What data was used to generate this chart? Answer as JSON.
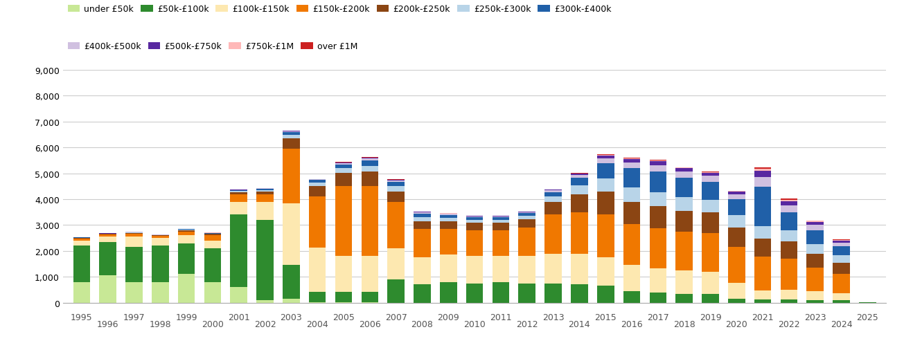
{
  "years": [
    1995,
    1996,
    1997,
    1998,
    1999,
    2000,
    2001,
    2002,
    2003,
    2004,
    2005,
    2006,
    2007,
    2008,
    2009,
    2010,
    2011,
    2012,
    2013,
    2014,
    2015,
    2016,
    2017,
    2018,
    2019,
    2020,
    2021,
    2022,
    2023,
    2024,
    2025
  ],
  "series": {
    "under_50k": [
      800,
      1050,
      800,
      800,
      1100,
      800,
      600,
      100,
      150,
      20,
      10,
      10,
      0,
      0,
      0,
      0,
      0,
      0,
      0,
      0,
      0,
      0,
      0,
      0,
      0,
      0,
      0,
      0,
      0,
      0,
      0
    ],
    "50k_100k": [
      1400,
      1300,
      1350,
      1400,
      1200,
      1300,
      2800,
      3100,
      1300,
      400,
      400,
      400,
      900,
      700,
      800,
      750,
      800,
      750,
      750,
      700,
      650,
      450,
      380,
      350,
      330,
      160,
      120,
      110,
      100,
      90,
      10
    ],
    "100k_150k": [
      200,
      200,
      400,
      300,
      300,
      300,
      500,
      700,
      2400,
      1700,
      1400,
      1400,
      1200,
      1050,
      1050,
      1050,
      1000,
      1050,
      1150,
      1200,
      1100,
      1000,
      950,
      900,
      850,
      600,
      350,
      400,
      350,
      280,
      0
    ],
    "150k_200k": [
      80,
      80,
      120,
      80,
      150,
      200,
      300,
      300,
      2100,
      2000,
      2700,
      2700,
      1800,
      1100,
      1000,
      1000,
      1000,
      1100,
      1500,
      1600,
      1650,
      1600,
      1550,
      1500,
      1500,
      1400,
      1300,
      1200,
      900,
      750,
      0
    ],
    "200k_250k": [
      20,
      20,
      30,
      20,
      50,
      50,
      80,
      100,
      400,
      400,
      500,
      550,
      400,
      300,
      300,
      280,
      280,
      320,
      500,
      700,
      900,
      850,
      850,
      800,
      800,
      750,
      700,
      650,
      550,
      430,
      0
    ],
    "250k_300k": [
      10,
      10,
      15,
      10,
      20,
      20,
      30,
      50,
      150,
      130,
      180,
      230,
      200,
      160,
      130,
      120,
      120,
      130,
      200,
      330,
      500,
      550,
      550,
      530,
      500,
      470,
      500,
      430,
      370,
      280,
      0
    ],
    "300k_400k": [
      10,
      10,
      12,
      10,
      20,
      20,
      35,
      50,
      100,
      90,
      150,
      200,
      160,
      130,
      110,
      100,
      100,
      110,
      180,
      310,
      600,
      750,
      800,
      750,
      700,
      620,
      1500,
      700,
      520,
      350,
      0
    ],
    "400k_500k": [
      5,
      5,
      5,
      5,
      8,
      8,
      12,
      18,
      30,
      25,
      50,
      75,
      60,
      50,
      40,
      35,
      35,
      40,
      60,
      100,
      190,
      220,
      240,
      230,
      220,
      190,
      380,
      280,
      210,
      140,
      0
    ],
    "500k_750k": [
      3,
      3,
      3,
      3,
      4,
      4,
      6,
      10,
      15,
      12,
      25,
      40,
      30,
      25,
      20,
      18,
      18,
      20,
      30,
      50,
      100,
      130,
      140,
      130,
      120,
      100,
      250,
      160,
      120,
      80,
      0
    ],
    "750k_1M": [
      1,
      1,
      1,
      1,
      2,
      2,
      3,
      5,
      6,
      5,
      10,
      12,
      10,
      8,
      6,
      5,
      5,
      6,
      8,
      12,
      25,
      30,
      35,
      32,
      30,
      25,
      80,
      55,
      40,
      28,
      0
    ],
    "over_1M": [
      1,
      1,
      1,
      1,
      2,
      2,
      3,
      5,
      4,
      4,
      6,
      8,
      7,
      6,
      4,
      4,
      4,
      4,
      6,
      8,
      12,
      15,
      18,
      16,
      15,
      12,
      40,
      30,
      22,
      16,
      0
    ]
  },
  "colors": {
    "under_50k": "#c8e896",
    "50k_100k": "#2e8b2e",
    "100k_150k": "#fde8b0",
    "150k_200k": "#f07800",
    "200k_250k": "#8b4513",
    "250k_300k": "#b8d4e8",
    "300k_400k": "#2060a8",
    "400k_500k": "#d0c0e0",
    "500k_750k": "#5828a0",
    "750k_1M": "#ffb8b8",
    "over_1M": "#cc2020"
  },
  "labels": {
    "under_50k": "under £50k",
    "50k_100k": "£50k-£100k",
    "100k_150k": "£100k-£150k",
    "150k_200k": "£150k-£200k",
    "200k_250k": "£200k-£250k",
    "250k_300k": "£250k-£300k",
    "300k_400k": "£300k-£400k",
    "400k_500k": "£400k-£500k",
    "500k_750k": "£500k-£750k",
    "750k_1M": "£750k-£1M",
    "over_1M": "over £1M"
  },
  "ylim": [
    0,
    9000
  ],
  "yticks": [
    0,
    1000,
    2000,
    3000,
    4000,
    5000,
    6000,
    7000,
    8000,
    9000
  ],
  "bar_width": 0.65,
  "background_color": "#ffffff",
  "grid_color": "#cccccc",
  "legend_fontsize": 9,
  "tick_fontsize": 9
}
